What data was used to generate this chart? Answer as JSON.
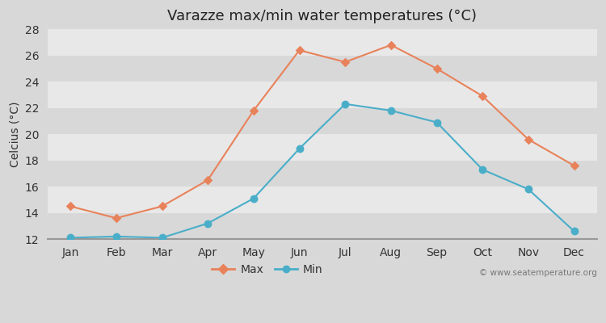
{
  "title": "Varazze max/min water temperatures (°C)",
  "ylabel": "Celcius (°C)",
  "months": [
    "Jan",
    "Feb",
    "Mar",
    "Apr",
    "May",
    "Jun",
    "Jul",
    "Aug",
    "Sep",
    "Oct",
    "Nov",
    "Dec"
  ],
  "max_temps": [
    14.5,
    13.6,
    14.5,
    16.5,
    21.8,
    26.4,
    25.5,
    26.8,
    25.0,
    22.9,
    19.6,
    17.6
  ],
  "min_temps": [
    12.1,
    12.2,
    12.1,
    13.2,
    15.1,
    18.9,
    22.3,
    21.8,
    20.9,
    17.3,
    15.8,
    12.6
  ],
  "max_color": "#e8825a",
  "min_color": "#4aaec9",
  "ylim": [
    12,
    28
  ],
  "yticks": [
    12,
    14,
    16,
    18,
    20,
    22,
    24,
    26,
    28
  ],
  "band_colors": [
    "#d8d8d8",
    "#e8e8e8"
  ],
  "bottom_line_color": "#999999",
  "watermark": "© www.seatemperature.org",
  "title_fontsize": 13,
  "label_fontsize": 10,
  "tick_fontsize": 10,
  "legend_fontsize": 10
}
